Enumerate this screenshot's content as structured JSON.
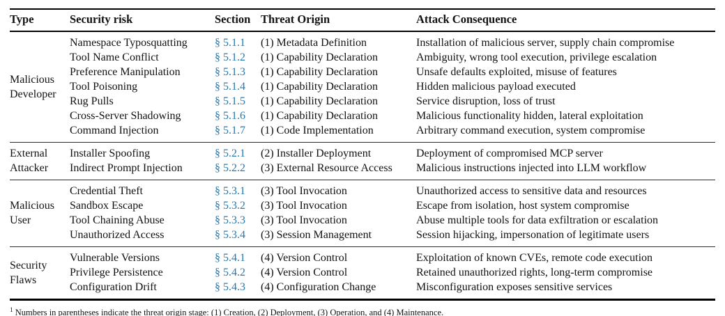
{
  "colors": {
    "link": "#2878AE",
    "rule": "#000000"
  },
  "table": {
    "columns": [
      "Type",
      "Security risk",
      "Section",
      "Threat Origin",
      "Attack Consequence"
    ],
    "groups": [
      {
        "type": "Malicious Developer",
        "rows": [
          {
            "risk": "Namespace Typosquatting",
            "section": "§ 5.1.1",
            "origin": "(1) Metadata Definition",
            "consequence": "Installation of malicious server, supply chain compromise"
          },
          {
            "risk": "Tool Name Conflict",
            "section": "§ 5.1.2",
            "origin": "(1) Capability Declaration",
            "consequence": "Ambiguity, wrong tool execution, privilege escalation"
          },
          {
            "risk": "Preference Manipulation",
            "section": "§ 5.1.3",
            "origin": "(1) Capability Declaration",
            "consequence": "Unsafe defaults exploited, misuse of features"
          },
          {
            "risk": "Tool Poisoning",
            "section": "§ 5.1.4",
            "origin": "(1) Capability Declaration",
            "consequence": "Hidden malicious payload executed"
          },
          {
            "risk": "Rug Pulls",
            "section": "§ 5.1.5",
            "origin": "(1) Capability Declaration",
            "consequence": "Service disruption, loss of trust"
          },
          {
            "risk": "Cross-Server Shadowing",
            "section": "§ 5.1.6",
            "origin": "(1) Capability Declaration",
            "consequence": "Malicious functionality hidden, lateral exploitation"
          },
          {
            "risk": "Command Injection",
            "section": "§ 5.1.7",
            "origin": "(1) Code Implementation",
            "consequence": "Arbitrary command execution, system compromise"
          }
        ]
      },
      {
        "type": "External Attacker",
        "rows": [
          {
            "risk": "Installer Spoofing",
            "section": "§ 5.2.1",
            "origin": "(2) Installer Deployment",
            "consequence": "Deployment of compromised MCP server"
          },
          {
            "risk": "Indirect Prompt Injection",
            "section": "§ 5.2.2",
            "origin": "(3) External Resource Access",
            "consequence": "Malicious instructions injected into LLM workflow"
          }
        ]
      },
      {
        "type": "Malicious User",
        "rows": [
          {
            "risk": "Credential Theft",
            "section": "§ 5.3.1",
            "origin": "(3) Tool Invocation",
            "consequence": "Unauthorized access to sensitive data and resources"
          },
          {
            "risk": "Sandbox Escape",
            "section": "§ 5.3.2",
            "origin": "(3) Tool Invocation",
            "consequence": "Escape from isolation, host system compromise"
          },
          {
            "risk": "Tool Chaining Abuse",
            "section": "§ 5.3.3",
            "origin": "(3) Tool Invocation",
            "consequence": "Abuse multiple tools for data exfiltration or escalation"
          },
          {
            "risk": "Unauthorized Access",
            "section": "§ 5.3.4",
            "origin": "(3) Session Management",
            "consequence": "Session hijacking, impersonation of legitimate users"
          }
        ]
      },
      {
        "type": "Security Flaws",
        "rows": [
          {
            "risk": "Vulnerable Versions",
            "section": "§ 5.4.1",
            "origin": "(4) Version Control",
            "consequence": "Exploitation of known CVEs, remote code execution"
          },
          {
            "risk": "Privilege Persistence",
            "section": "§ 5.4.2",
            "origin": "(4) Version Control",
            "consequence": "Retained unauthorized rights, long-term compromise"
          },
          {
            "risk": "Configuration Drift",
            "section": "§ 5.4.3",
            "origin": "(4) Configuration Change",
            "consequence": "Misconfiguration exposes sensitive services"
          }
        ]
      }
    ],
    "footnote": {
      "marker": "1",
      "text": "Numbers in parentheses indicate the threat origin stage: (1) Creation, (2) Deployment, (3) Operation, and (4) Maintenance."
    }
  }
}
